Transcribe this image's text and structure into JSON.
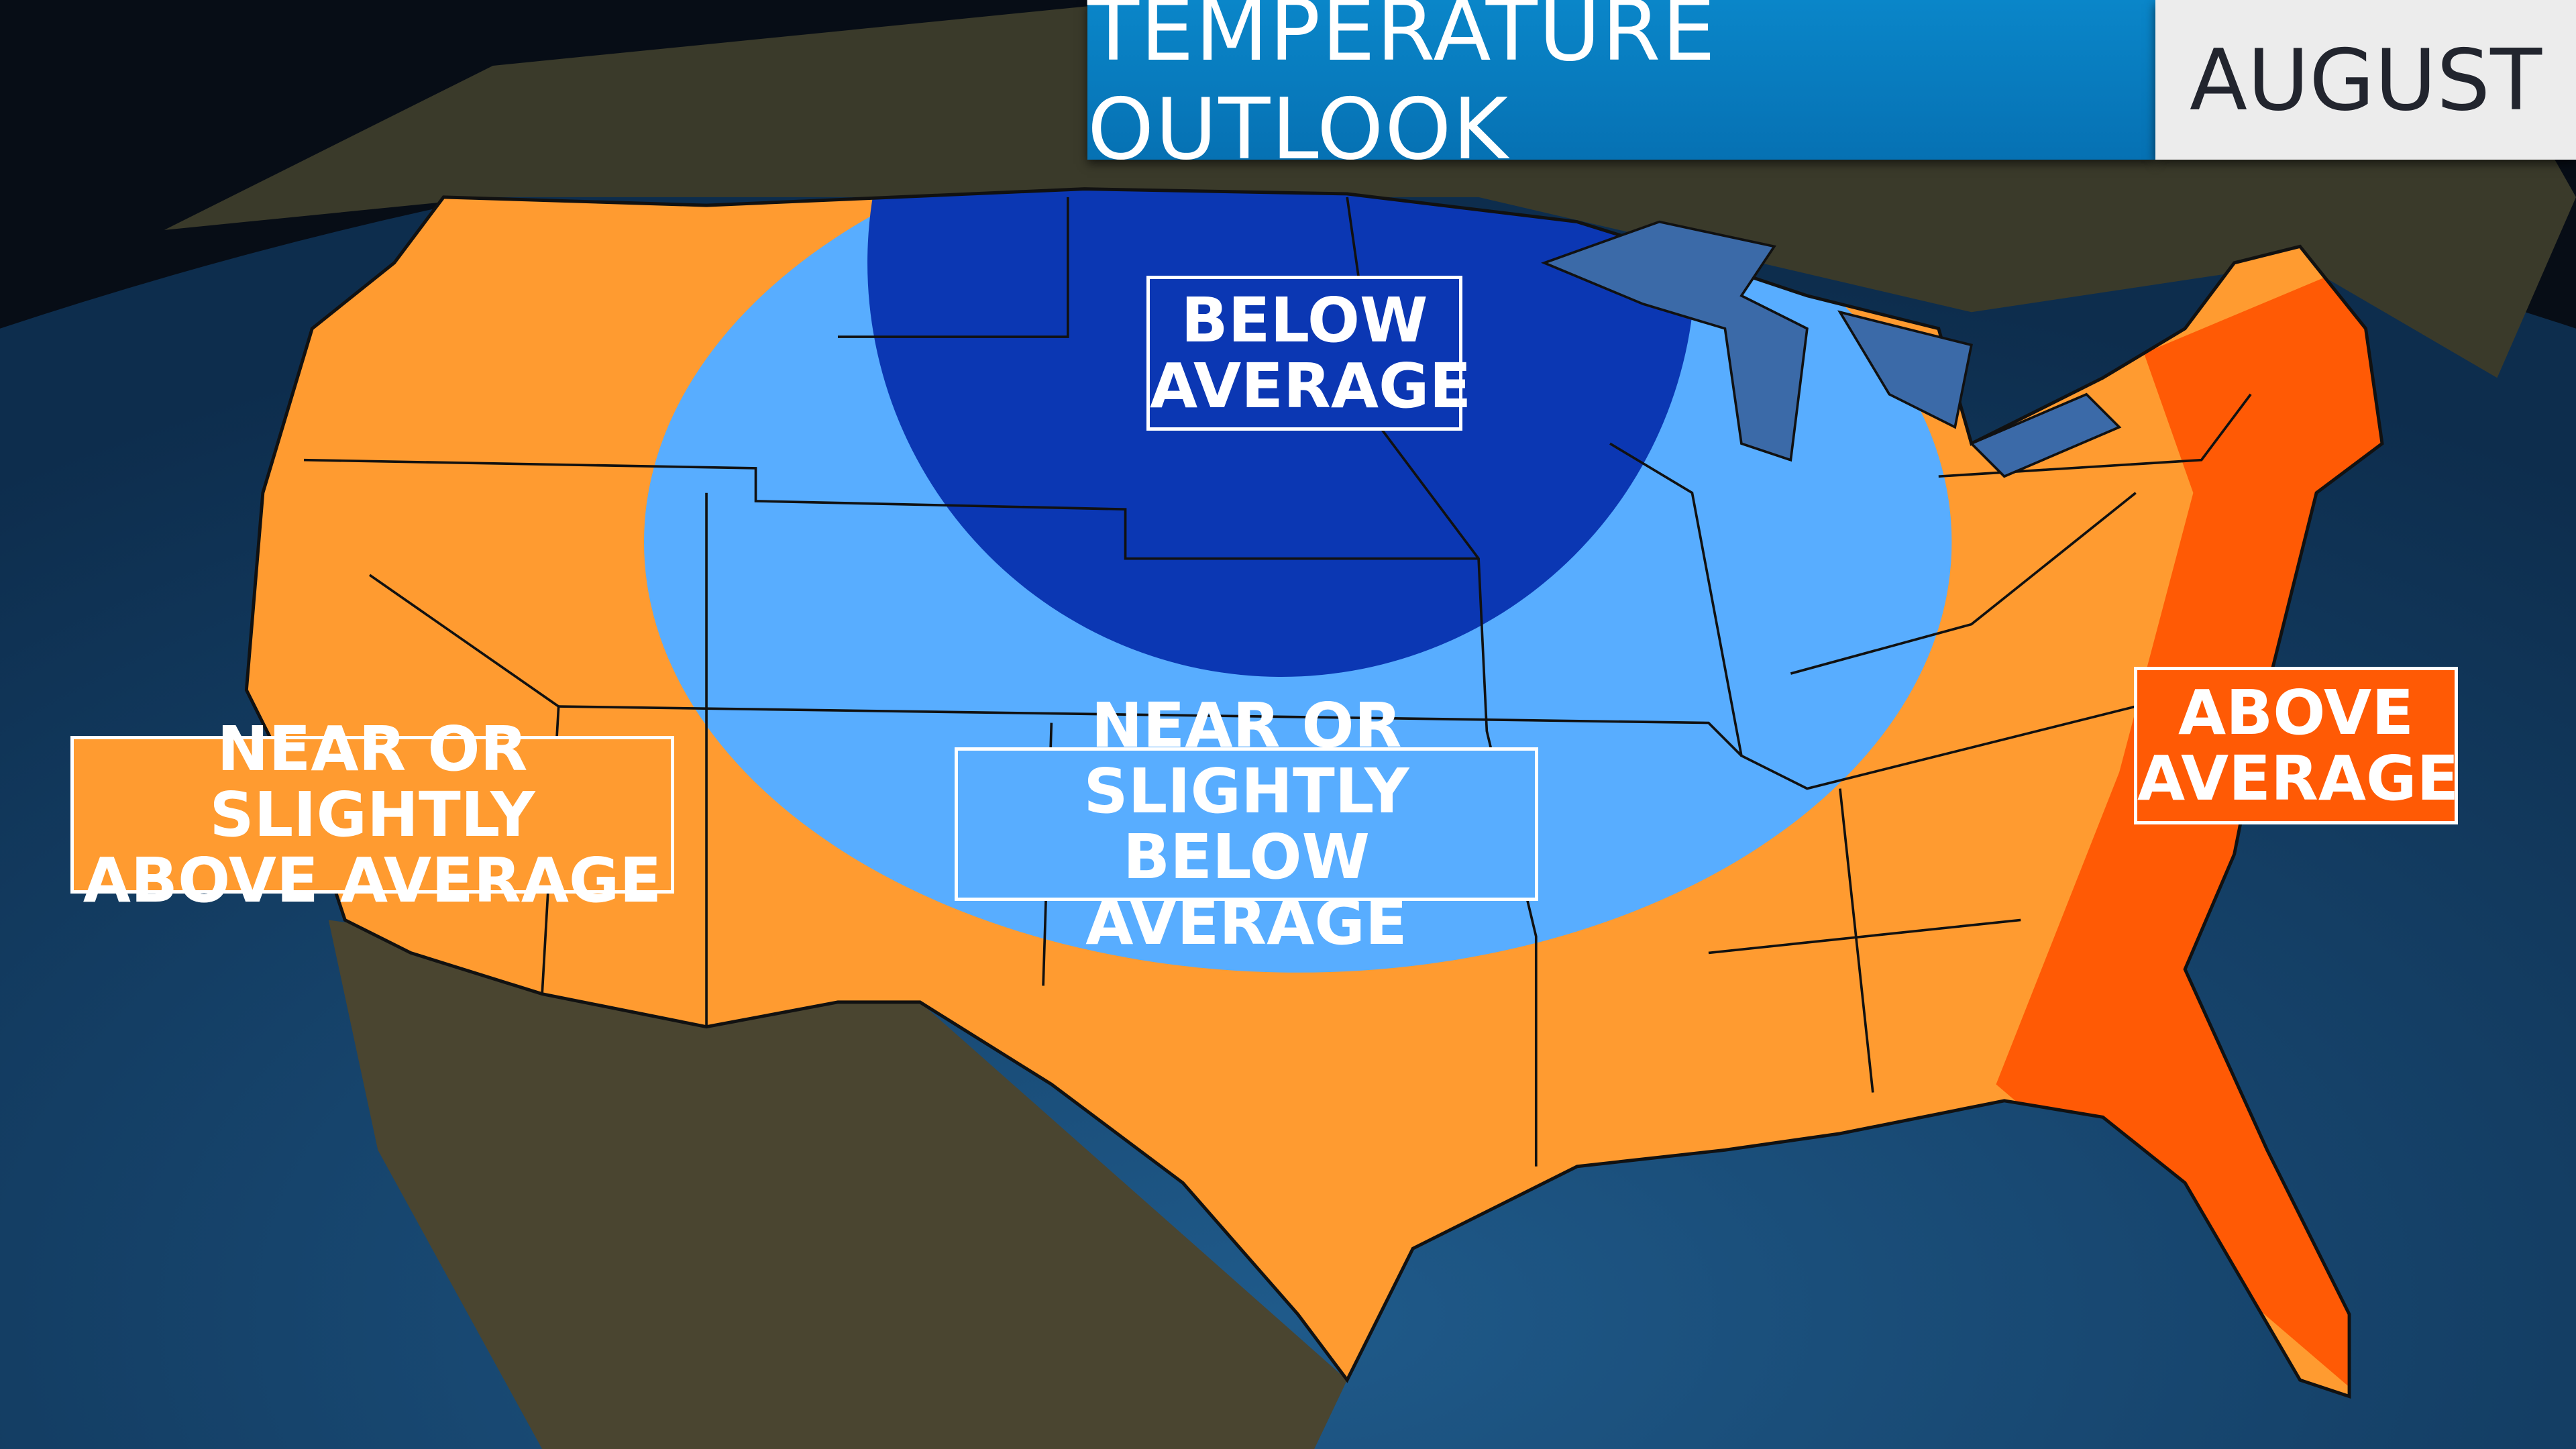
{
  "header": {
    "title": "TEMPERATURE OUTLOOK",
    "month": "AUGUST"
  },
  "legend": {
    "below": {
      "line1": "BELOW",
      "line2": "AVERAGE",
      "color": "#0b37b3"
    },
    "near_below": {
      "line1": "NEAR OR SLIGHTLY",
      "line2": "BELOW AVERAGE",
      "color": "#58adff"
    },
    "near_above": {
      "line1": "NEAR OR SLIGHTLY",
      "line2": "ABOVE AVERAGE",
      "color": "#ff9b30"
    },
    "above": {
      "line1": "ABOVE",
      "line2": "AVERAGE",
      "color": "#ff5a05"
    }
  }
}
